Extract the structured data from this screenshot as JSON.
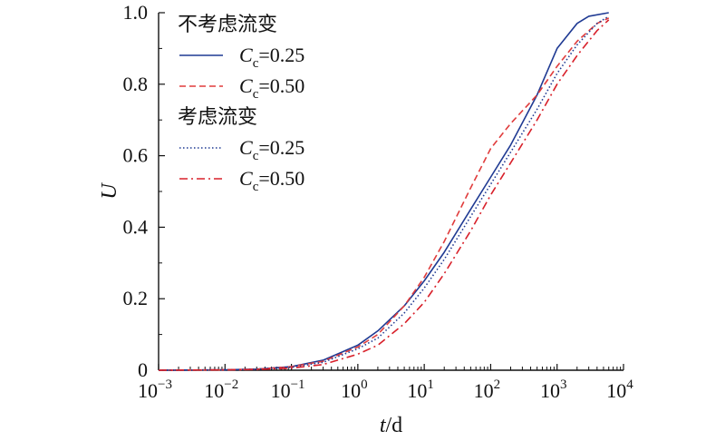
{
  "chart_data": {
    "type": "line",
    "xlabel": "t/d",
    "xlabel_italic": "t",
    "xlabel_unit": "/d",
    "ylabel": "U",
    "xscale": "log",
    "xlim": [
      0.001,
      10000
    ],
    "ylim": [
      0,
      1.0
    ],
    "x_ticks": [
      {
        "base": "10",
        "exp": "−3"
      },
      {
        "base": "10",
        "exp": "−2"
      },
      {
        "base": "10",
        "exp": "−1"
      },
      {
        "base": "10",
        "exp": "0"
      },
      {
        "base": "10",
        "exp": "1"
      },
      {
        "base": "10",
        "exp": "2"
      },
      {
        "base": "10",
        "exp": "3"
      },
      {
        "base": "10",
        "exp": "4"
      }
    ],
    "y_ticks": [
      "0",
      "0.2",
      "0.4",
      "0.6",
      "0.8",
      "1.0"
    ],
    "legend_placement": "top-left",
    "legend_groups": [
      {
        "heading": "不考虑流变",
        "series": [
          0,
          1
        ]
      },
      {
        "heading": "考虑流变",
        "series": [
          2,
          3
        ]
      }
    ],
    "series": [
      {
        "name": "Cc=0.25",
        "label_main": "C",
        "label_sub": "c",
        "label_rest": "=0.25",
        "color": "#1f3a93",
        "dash": "solid",
        "points": [
          [
            0.001,
            0
          ],
          [
            0.01,
            0.001
          ],
          [
            0.03,
            0.003
          ],
          [
            0.1,
            0.01
          ],
          [
            0.3,
            0.028
          ],
          [
            1,
            0.07
          ],
          [
            2,
            0.11
          ],
          [
            5,
            0.18
          ],
          [
            10,
            0.25
          ],
          [
            20,
            0.33
          ],
          [
            50,
            0.45
          ],
          [
            100,
            0.54
          ],
          [
            200,
            0.63
          ],
          [
            500,
            0.77
          ],
          [
            1000,
            0.9
          ],
          [
            2000,
            0.97
          ],
          [
            3000,
            0.99
          ],
          [
            6000,
            1.0
          ]
        ]
      },
      {
        "name": "Cc=0.50",
        "label_main": "C",
        "label_sub": "c",
        "label_rest": "=0.50",
        "color": "#e03c3c",
        "dash": "dashed",
        "points": [
          [
            0.001,
            0
          ],
          [
            0.01,
            0.001
          ],
          [
            0.03,
            0.003
          ],
          [
            0.1,
            0.01
          ],
          [
            0.3,
            0.025
          ],
          [
            1,
            0.065
          ],
          [
            2,
            0.1
          ],
          [
            5,
            0.18
          ],
          [
            10,
            0.26
          ],
          [
            20,
            0.36
          ],
          [
            50,
            0.51
          ],
          [
            100,
            0.62
          ],
          [
            200,
            0.69
          ],
          [
            500,
            0.77
          ],
          [
            1000,
            0.85
          ],
          [
            2000,
            0.92
          ],
          [
            4000,
            0.97
          ],
          [
            6000,
            0.985
          ]
        ]
      },
      {
        "name": "Cc=0.25",
        "label_main": "C",
        "label_sub": "c",
        "label_rest": "=0.25",
        "color": "#1f3a93",
        "dash": "dotted",
        "points": [
          [
            0.001,
            0
          ],
          [
            0.01,
            0.001
          ],
          [
            0.03,
            0.003
          ],
          [
            0.1,
            0.008
          ],
          [
            0.3,
            0.022
          ],
          [
            1,
            0.06
          ],
          [
            2,
            0.09
          ],
          [
            5,
            0.16
          ],
          [
            10,
            0.23
          ],
          [
            20,
            0.31
          ],
          [
            50,
            0.43
          ],
          [
            100,
            0.52
          ],
          [
            200,
            0.61
          ],
          [
            500,
            0.73
          ],
          [
            1000,
            0.83
          ],
          [
            2000,
            0.91
          ],
          [
            4000,
            0.97
          ],
          [
            6000,
            0.99
          ]
        ]
      },
      {
        "name": "Cc=0.50",
        "label_main": "C",
        "label_sub": "c",
        "label_rest": "=0.50",
        "color": "#d8202a",
        "dash": "dashdot",
        "points": [
          [
            0.001,
            0
          ],
          [
            0.01,
            0.001
          ],
          [
            0.03,
            0.002
          ],
          [
            0.1,
            0.006
          ],
          [
            0.3,
            0.016
          ],
          [
            1,
            0.045
          ],
          [
            2,
            0.07
          ],
          [
            5,
            0.13
          ],
          [
            10,
            0.19
          ],
          [
            20,
            0.27
          ],
          [
            50,
            0.39
          ],
          [
            100,
            0.49
          ],
          [
            200,
            0.58
          ],
          [
            500,
            0.7
          ],
          [
            1000,
            0.8
          ],
          [
            2000,
            0.88
          ],
          [
            4000,
            0.95
          ],
          [
            6000,
            0.98
          ]
        ]
      }
    ]
  }
}
